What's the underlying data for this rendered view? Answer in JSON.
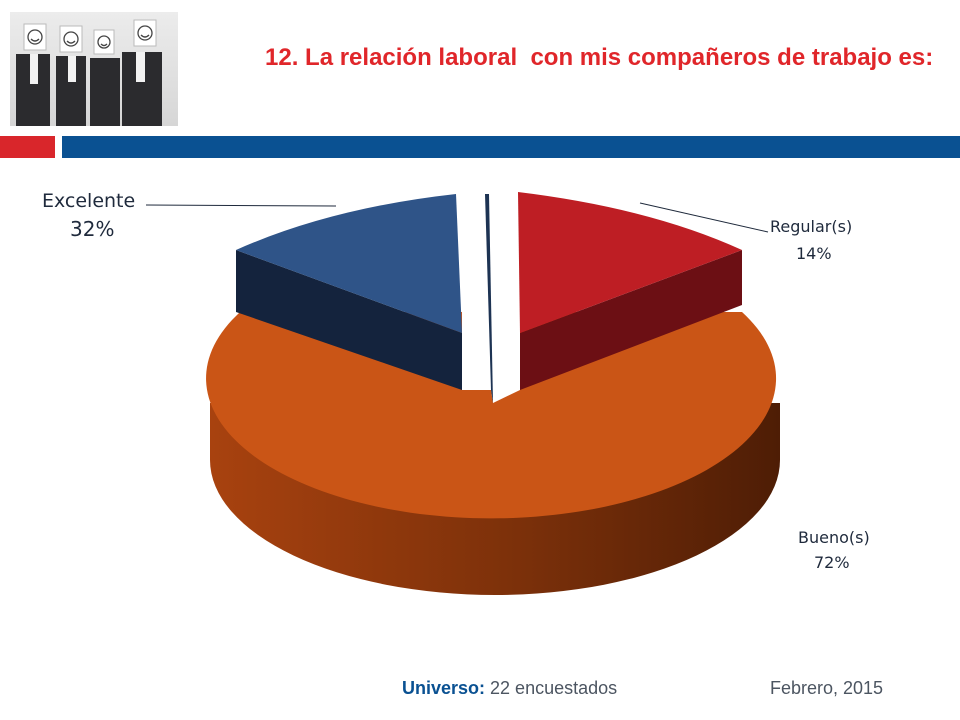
{
  "header": {
    "title": "12. La relación laboral  con mis compañeros de trabajo es:"
  },
  "colors": {
    "accent_red": "#d9262b",
    "accent_blue": "#0a5192",
    "title_red": "#e0262a"
  },
  "chart_data": {
    "type": "pie",
    "style": "3d-exploded",
    "slices": [
      {
        "label": "Excelente",
        "value_label": "32%",
        "value": 32,
        "color": "#2f5488"
      },
      {
        "label": "Regular(s)",
        "value_label": "14%",
        "value": 14,
        "color": "#be1e24"
      },
      {
        "label": "Bueno(s)",
        "value_label": "72%",
        "value": 72,
        "color": "#ca5516"
      }
    ]
  },
  "footer": {
    "universe_label": "Universo:",
    "universe_value": " 22 encuestados",
    "date": "Febrero, 2015"
  }
}
